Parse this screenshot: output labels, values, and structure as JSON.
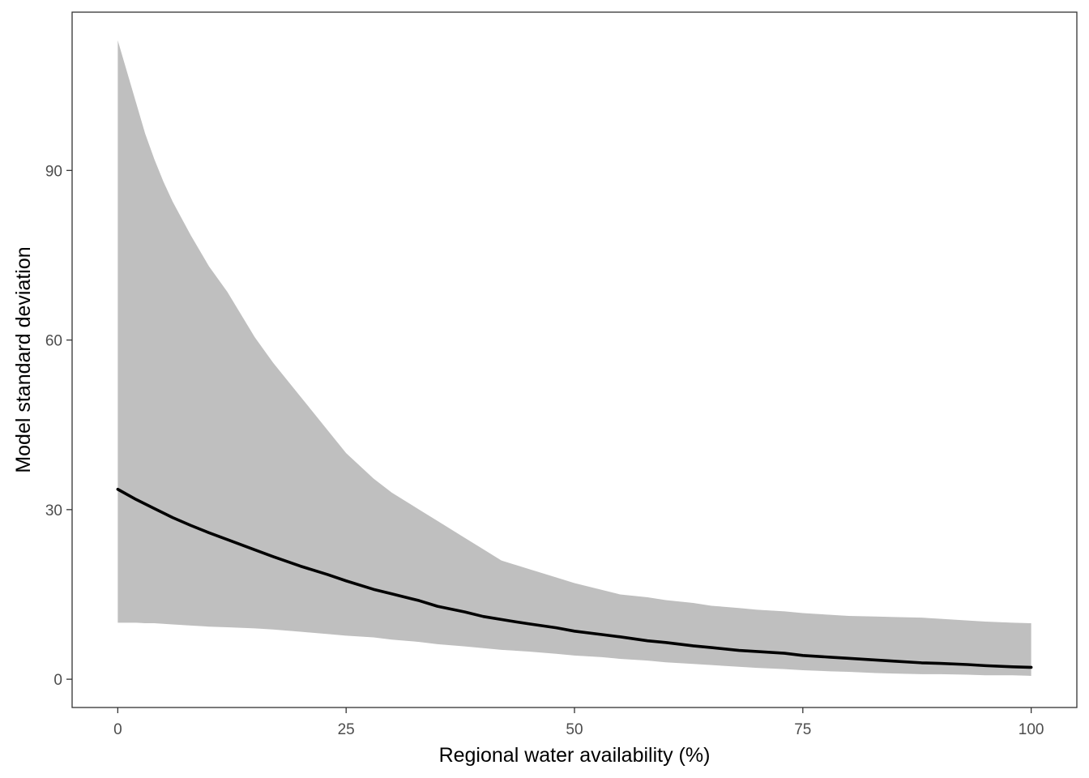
{
  "chart_data": {
    "type": "line",
    "title": "",
    "xlabel": "Regional water availability (%)",
    "ylabel": "Model standard deviation",
    "xlim": [
      -5,
      105
    ],
    "ylim": [
      -5,
      118
    ],
    "x_ticks": [
      0,
      25,
      50,
      75,
      100
    ],
    "x_tick_labels": [
      "0",
      "25",
      "50",
      "75",
      "100"
    ],
    "y_ticks": [
      0,
      30,
      60,
      90
    ],
    "y_tick_labels": [
      "0",
      "30",
      "60",
      "90"
    ],
    "grid": false,
    "legend": "none",
    "colors": {
      "line": "#000000",
      "band": "#bfbfbf",
      "panel_border": "#333333",
      "tick_text": "#4d4d4d"
    },
    "series": [
      {
        "type": "line",
        "x": [
          0,
          2,
          4,
          6,
          8,
          10,
          12,
          15,
          17,
          20,
          23,
          25,
          28,
          30,
          33,
          35,
          38,
          40,
          43,
          45,
          48,
          50,
          53,
          55,
          58,
          60,
          63,
          65,
          68,
          70,
          73,
          75,
          78,
          80,
          83,
          85,
          88,
          90,
          93,
          95,
          98,
          100
        ],
        "y": [
          33.6,
          31.8,
          30.2,
          28.6,
          27.2,
          25.9,
          24.7,
          22.9,
          21.7,
          20.0,
          18.5,
          17.4,
          15.9,
          15.1,
          13.9,
          12.9,
          11.9,
          11.1,
          10.3,
          9.8,
          9.1,
          8.5,
          7.9,
          7.5,
          6.8,
          6.5,
          5.9,
          5.6,
          5.1,
          4.9,
          4.6,
          4.2,
          3.9,
          3.7,
          3.4,
          3.2,
          2.9,
          2.8,
          2.6,
          2.4,
          2.2,
          2.1
        ]
      },
      {
        "type": "area",
        "x": [
          0,
          1,
          2,
          3,
          4,
          5,
          6,
          8,
          10,
          12,
          15,
          17,
          20,
          23,
          25,
          28,
          30,
          33,
          35,
          38,
          40,
          42,
          45,
          48,
          50,
          53,
          55,
          58,
          60,
          63,
          65,
          68,
          70,
          73,
          75,
          78,
          80,
          83,
          85,
          88,
          90,
          93,
          95,
          98,
          100
        ],
        "upper": [
          113.0,
          107.5,
          102.0,
          96.5,
          92.0,
          88.0,
          84.5,
          78.5,
          73.0,
          68.5,
          60.5,
          56.0,
          50.0,
          44.0,
          40.0,
          35.5,
          33.0,
          30.0,
          28.0,
          25.0,
          23.0,
          21.0,
          19.5,
          18.0,
          17.0,
          15.8,
          15.0,
          14.5,
          14.0,
          13.5,
          13.0,
          12.6,
          12.3,
          12.0,
          11.7,
          11.4,
          11.2,
          11.1,
          11.0,
          10.9,
          10.7,
          10.4,
          10.2,
          10.0,
          9.9
        ],
        "lower": [
          10.0,
          10.0,
          10.0,
          9.9,
          9.9,
          9.8,
          9.7,
          9.5,
          9.3,
          9.2,
          9.0,
          8.8,
          8.4,
          8.0,
          7.7,
          7.4,
          7.0,
          6.6,
          6.2,
          5.8,
          5.5,
          5.2,
          4.9,
          4.5,
          4.2,
          3.9,
          3.6,
          3.3,
          3.0,
          2.7,
          2.5,
          2.2,
          2.0,
          1.8,
          1.6,
          1.4,
          1.3,
          1.1,
          1.0,
          0.9,
          0.9,
          0.8,
          0.7,
          0.7,
          0.6
        ]
      }
    ]
  }
}
